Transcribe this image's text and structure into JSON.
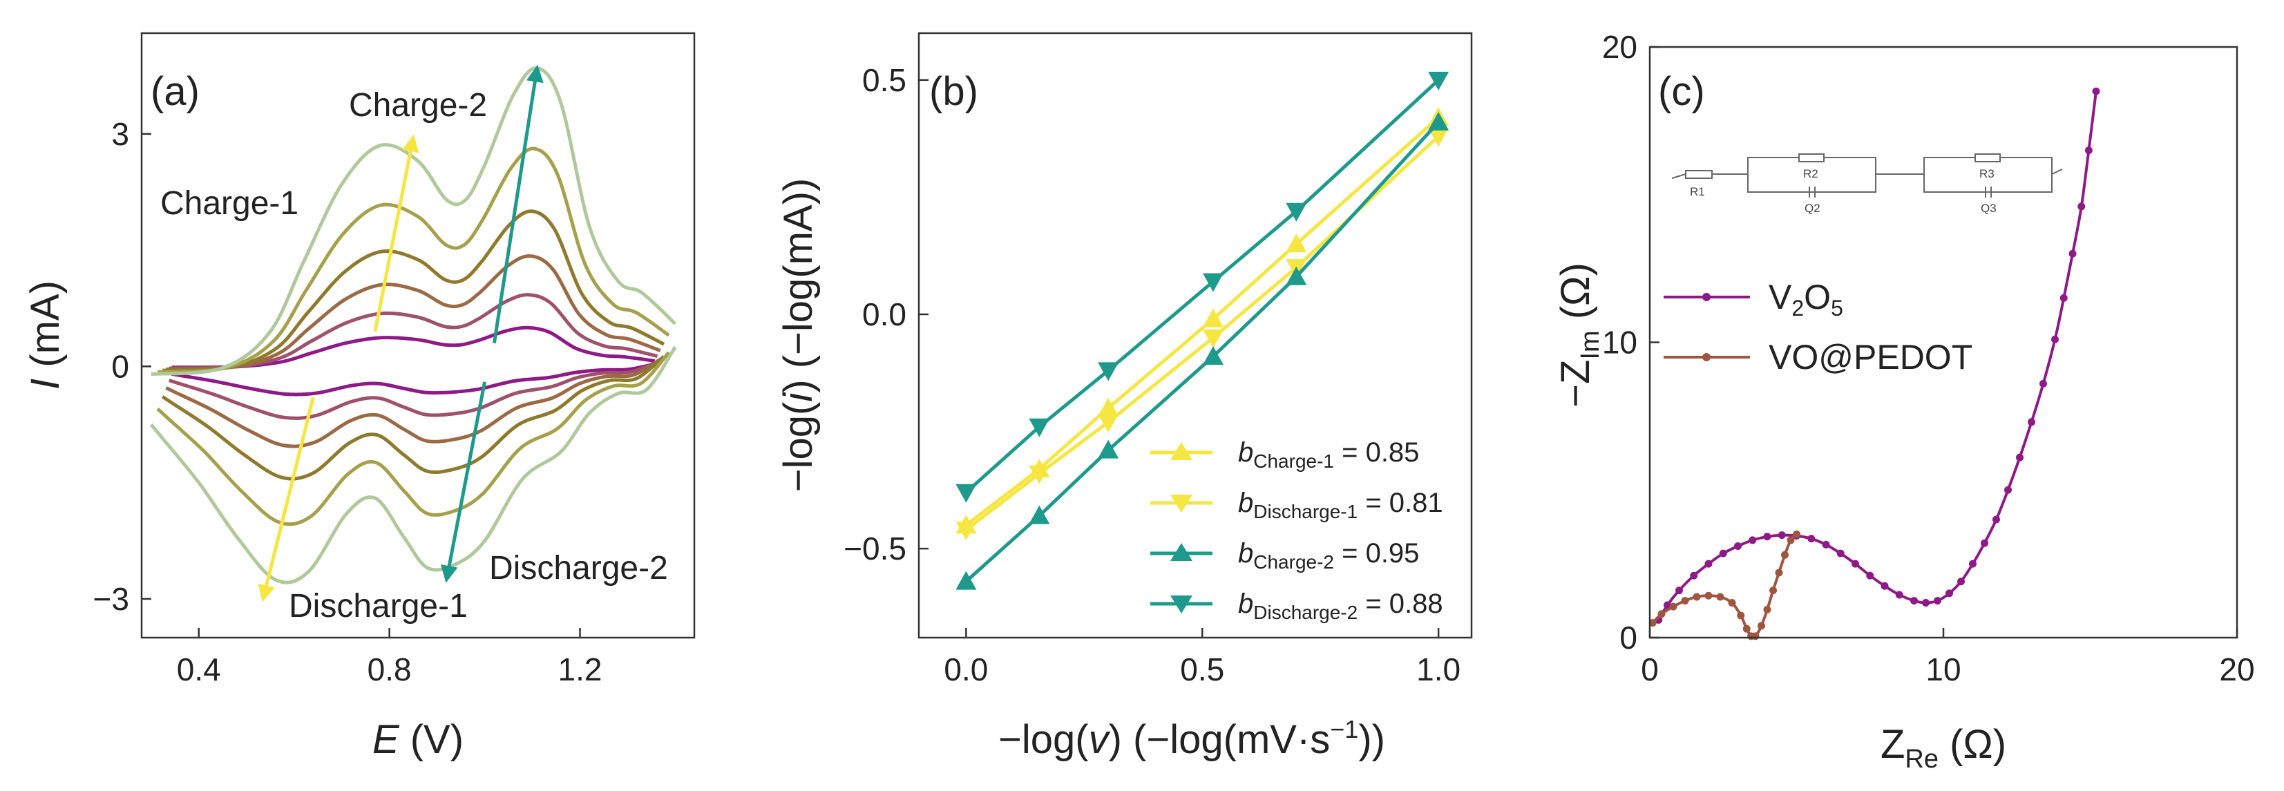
{
  "chart_data": [
    {
      "panel": "(a)",
      "type": "line",
      "xlabel_italic": "E",
      "xlabel_unit": " (V)",
      "ylabel_italic": "I",
      "ylabel_unit": " (mA)",
      "xlim": [
        0.28,
        1.44
      ],
      "ylim": [
        -3.5,
        4.3
      ],
      "xticks": [
        {
          "v": 0.4,
          "label": "0.4"
        },
        {
          "v": 0.8,
          "label": "0.8"
        },
        {
          "v": 1.2,
          "label": "1.2"
        }
      ],
      "yticks": [
        {
          "v": 3,
          "label": "3"
        },
        {
          "v": 0,
          "label": "0"
        },
        {
          "v": -3,
          "label": "−3"
        }
      ],
      "curve_colors": [
        "#8e1a87",
        "#a0506a",
        "#9b6a45",
        "#8f7a2c",
        "#a7a04b",
        "#b0c99a"
      ],
      "scales": [
        0.13,
        0.24,
        0.37,
        0.52,
        0.73,
        1.0
      ],
      "base_curve": {
        "anodic": [
          [
            0.3,
            -0.1
          ],
          [
            0.45,
            -0.02
          ],
          [
            0.55,
            0.45
          ],
          [
            0.62,
            1.35
          ],
          [
            0.7,
            2.35
          ],
          [
            0.78,
            2.85
          ],
          [
            0.86,
            2.65
          ],
          [
            0.92,
            2.15
          ],
          [
            0.96,
            2.15
          ],
          [
            1.0,
            2.6
          ],
          [
            1.06,
            3.5
          ],
          [
            1.11,
            3.85
          ],
          [
            1.16,
            3.4
          ],
          [
            1.22,
            1.8
          ],
          [
            1.28,
            1.1
          ],
          [
            1.33,
            0.95
          ],
          [
            1.4,
            0.55
          ]
        ],
        "cathodic": [
          [
            1.4,
            0.25
          ],
          [
            1.34,
            -0.3
          ],
          [
            1.28,
            -0.35
          ],
          [
            1.22,
            -0.6
          ],
          [
            1.16,
            -1.1
          ],
          [
            1.08,
            -1.45
          ],
          [
            1.0,
            -2.25
          ],
          [
            0.94,
            -2.55
          ],
          [
            0.88,
            -2.6
          ],
          [
            0.83,
            -2.2
          ],
          [
            0.77,
            -1.7
          ],
          [
            0.71,
            -1.9
          ],
          [
            0.63,
            -2.65
          ],
          [
            0.56,
            -2.75
          ],
          [
            0.48,
            -2.2
          ],
          [
            0.4,
            -1.5
          ],
          [
            0.32,
            -0.9
          ],
          [
            0.3,
            -0.75
          ]
        ]
      },
      "arrows": [
        {
          "from": [
            0.77,
            0.45
          ],
          "to": [
            0.85,
            2.95
          ],
          "color": "#f5e642"
        },
        {
          "from": [
            1.02,
            0.3
          ],
          "to": [
            1.11,
            3.85
          ],
          "color": "#1e9a8c"
        },
        {
          "from": [
            0.64,
            -0.4
          ],
          "to": [
            0.535,
            -3.0
          ],
          "color": "#f5e642"
        },
        {
          "from": [
            1.0,
            -0.2
          ],
          "to": [
            0.92,
            -2.75
          ],
          "color": "#1e9a8c"
        }
      ],
      "annotations": [
        {
          "text": "Charge-1",
          "x": 0.19,
          "y": 2.3
        },
        {
          "text": "Charge-2",
          "x": 0.71,
          "y": 3.65
        },
        {
          "text": "Discharge-1",
          "x": 0.555,
          "y": -3.15
        },
        {
          "text": "Discharge-2",
          "x": 0.935,
          "y": -2.55
        }
      ]
    },
    {
      "panel": "(b)",
      "type": "scatter",
      "xlabel_pre": "−log(",
      "xlabel_italic": "v",
      "xlabel_post": ") (−log(mV·s",
      "xlabel_sup": "−1",
      "xlabel_end": "))",
      "ylabel_pre": "−log(",
      "ylabel_italic": "i",
      "ylabel_post": ") (−log(mA))",
      "xlim": [
        -0.1,
        1.07
      ],
      "ylim": [
        -0.69,
        0.6
      ],
      "xticks": [
        {
          "v": 0.0,
          "label": "0.0"
        },
        {
          "v": 0.5,
          "label": "0.5"
        },
        {
          "v": 1.0,
          "label": "1.0"
        }
      ],
      "yticks": [
        {
          "v": 0.5,
          "label": "0.5"
        },
        {
          "v": 0.0,
          "label": "0.0"
        },
        {
          "v": -0.5,
          "label": "−0.5"
        }
      ],
      "x": [
        0.0,
        0.155,
        0.301,
        0.523,
        0.699,
        1.0
      ],
      "series": [
        {
          "name": "Charge-1",
          "sym": "b",
          "sub": "Charge-1",
          "value": " = 0.85",
          "marker": "up",
          "color": "#f5e642",
          "values": [
            -0.45,
            -0.33,
            -0.2,
            -0.01,
            0.15,
            0.42
          ]
        },
        {
          "name": "Discharge-1",
          "sym": "b",
          "sub": "Discharge-1",
          "value": " = 0.81",
          "marker": "down",
          "color": "#f5e642",
          "values": [
            -0.46,
            -0.34,
            -0.23,
            -0.05,
            0.1,
            0.38
          ]
        },
        {
          "name": "Charge-2",
          "sym": "b",
          "sub": "Charge-2",
          "value": " = 0.95",
          "marker": "up",
          "color": "#1e9a8c",
          "values": [
            -0.57,
            -0.43,
            -0.29,
            -0.09,
            0.08,
            0.41
          ]
        },
        {
          "name": "Discharge-2",
          "sym": "b",
          "sub": "Discharge-2",
          "value": " = 0.88",
          "marker": "down",
          "color": "#1e9a8c",
          "values": [
            -0.38,
            -0.24,
            -0.12,
            0.07,
            0.22,
            0.5
          ]
        }
      ]
    },
    {
      "panel": "(c)",
      "type": "line",
      "xlabel_main": "Z",
      "xlabel_sub": "Re",
      "xlabel_unit": " (Ω)",
      "ylabel_main": "−Z",
      "ylabel_sub": "Im",
      "ylabel_unit": " (Ω)",
      "xlim": [
        0,
        20
      ],
      "ylim": [
        0,
        20
      ],
      "xticks": [
        {
          "v": 0,
          "label": "0"
        },
        {
          "v": 10,
          "label": "10"
        },
        {
          "v": 20,
          "label": "20"
        }
      ],
      "yticks": [
        {
          "v": 20,
          "label": "20"
        },
        {
          "v": 10,
          "label": "10"
        },
        {
          "v": 0,
          "label": "0"
        }
      ],
      "circuit_labels": [
        "R1",
        "R2",
        "Q2",
        "R3",
        "Q3"
      ],
      "series": [
        {
          "name": "V2O5",
          "label_main": "V",
          "label_sub1": "2",
          "label_mid": "O",
          "label_sub2": "5",
          "color": "#8e1a87",
          "points": [
            [
              0.3,
              0.6
            ],
            [
              0.6,
              1.1
            ],
            [
              1.0,
              1.6
            ],
            [
              1.5,
              2.1
            ],
            [
              2.0,
              2.5
            ],
            [
              2.5,
              2.85
            ],
            [
              3.0,
              3.1
            ],
            [
              3.5,
              3.3
            ],
            [
              4.0,
              3.42
            ],
            [
              4.5,
              3.47
            ],
            [
              5.0,
              3.45
            ],
            [
              5.5,
              3.35
            ],
            [
              6.0,
              3.15
            ],
            [
              6.5,
              2.85
            ],
            [
              7.0,
              2.5
            ],
            [
              7.5,
              2.1
            ],
            [
              8.0,
              1.75
            ],
            [
              8.5,
              1.45
            ],
            [
              9.0,
              1.25
            ],
            [
              9.4,
              1.18
            ],
            [
              9.8,
              1.25
            ],
            [
              10.2,
              1.5
            ],
            [
              10.6,
              1.9
            ],
            [
              11.0,
              2.5
            ],
            [
              11.4,
              3.2
            ],
            [
              11.8,
              4.0
            ],
            [
              12.2,
              5.0
            ],
            [
              12.6,
              6.1
            ],
            [
              13.0,
              7.3
            ],
            [
              13.4,
              8.6
            ],
            [
              13.8,
              10.1
            ],
            [
              14.1,
              11.5
            ],
            [
              14.4,
              13.0
            ],
            [
              14.7,
              14.6
            ],
            [
              14.95,
              16.5
            ],
            [
              15.2,
              18.5
            ]
          ]
        },
        {
          "name": "VO@PEDOT",
          "label_main": "VO@PEDOT",
          "color": "#a0553f",
          "points": [
            [
              0.1,
              0.5
            ],
            [
              0.4,
              0.8
            ],
            [
              0.8,
              1.05
            ],
            [
              1.2,
              1.25
            ],
            [
              1.6,
              1.38
            ],
            [
              2.0,
              1.42
            ],
            [
              2.4,
              1.38
            ],
            [
              2.8,
              1.18
            ],
            [
              3.1,
              0.75
            ],
            [
              3.3,
              0.3
            ],
            [
              3.45,
              0.05
            ],
            [
              3.6,
              0.05
            ],
            [
              3.8,
              0.4
            ],
            [
              4.0,
              0.95
            ],
            [
              4.2,
              1.6
            ],
            [
              4.4,
              2.2
            ],
            [
              4.6,
              2.8
            ],
            [
              4.8,
              3.3
            ],
            [
              5.0,
              3.5
            ]
          ]
        }
      ]
    }
  ]
}
